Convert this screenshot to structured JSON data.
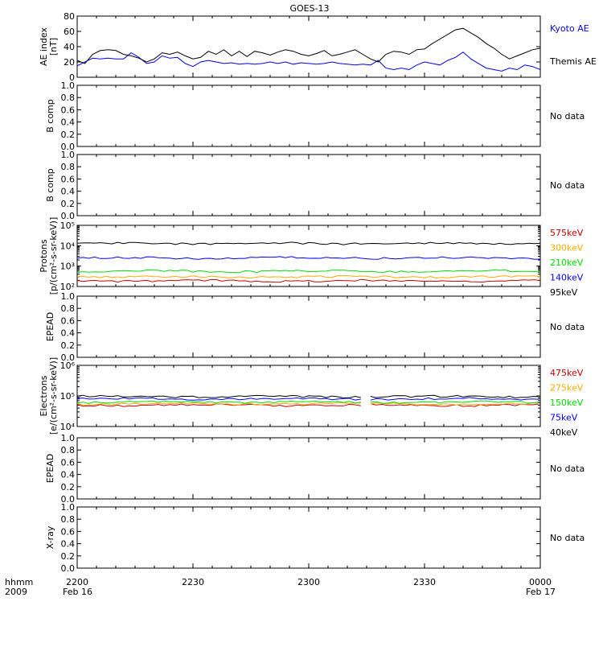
{
  "title": "GOES-13",
  "footer": {
    "time_label": "hhmm",
    "year_label": "2009"
  },
  "x_axis": {
    "tick_labels": [
      "2200",
      "2230",
      "2300",
      "2330",
      "0000"
    ],
    "date_labels": [
      "Feb 16",
      "Feb 17"
    ]
  },
  "no_data_text": "No data",
  "colors": {
    "black": "#000000",
    "blue": "#0000ff",
    "green": "#00dd00",
    "orange": "#ffaa00",
    "red": "#cc0000"
  },
  "chart_data": [
    {
      "id": "ae",
      "type": "line",
      "ylabel_lines": [
        "AE index",
        "[nT]"
      ],
      "ylim": [
        0,
        80
      ],
      "yticks": [
        "0",
        "20",
        "40",
        "60",
        "80"
      ],
      "x": [
        "22:00",
        "22:02",
        "22:04",
        "22:06",
        "22:08",
        "22:10",
        "22:12",
        "22:14",
        "22:16",
        "22:18",
        "22:20",
        "22:22",
        "22:24",
        "22:26",
        "22:28",
        "22:30",
        "22:32",
        "22:34",
        "22:36",
        "22:38",
        "22:40",
        "22:42",
        "22:44",
        "22:46",
        "22:48",
        "22:50",
        "22:52",
        "22:54",
        "22:56",
        "22:58",
        "23:00",
        "23:02",
        "23:04",
        "23:06",
        "23:08",
        "23:10",
        "23:12",
        "23:14",
        "23:16",
        "23:18",
        "23:20",
        "23:22",
        "23:24",
        "23:26",
        "23:28",
        "23:30",
        "23:32",
        "23:34",
        "23:36",
        "23:38",
        "23:40",
        "23:42",
        "23:44",
        "23:46",
        "23:48",
        "23:50",
        "23:52",
        "23:54",
        "23:56",
        "23:58",
        "00:00"
      ],
      "series": [
        {
          "name": "Kyoto AE",
          "color": "#0000ff",
          "values": [
            15,
            20,
            25,
            24,
            25,
            24,
            24,
            32,
            26,
            18,
            20,
            28,
            25,
            26,
            18,
            14,
            20,
            22,
            20,
            18,
            19,
            17,
            18,
            17,
            18,
            20,
            18,
            20,
            17,
            19,
            18,
            17,
            18,
            20,
            18,
            17,
            16,
            17,
            16,
            22,
            12,
            10,
            12,
            10,
            16,
            20,
            18,
            16,
            22,
            26,
            33,
            24,
            18,
            12,
            10,
            8,
            12,
            10,
            16,
            14,
            10
          ]
        },
        {
          "name": "Themis AE",
          "color": "#000000",
          "values": [
            22,
            18,
            30,
            35,
            36,
            35,
            30,
            28,
            25,
            20,
            24,
            32,
            30,
            33,
            28,
            24,
            26,
            34,
            30,
            36,
            28,
            34,
            27,
            34,
            32,
            29,
            33,
            36,
            34,
            30,
            28,
            31,
            35,
            28,
            30,
            33,
            36,
            30,
            24,
            20,
            30,
            34,
            33,
            30,
            36,
            37,
            44,
            50,
            56,
            62,
            64,
            58,
            52,
            44,
            38,
            30,
            24,
            28,
            32,
            36,
            38
          ]
        }
      ]
    },
    {
      "id": "b1",
      "type": "line",
      "ylabel_lines": [
        "B comp"
      ],
      "ylim": [
        0,
        1
      ],
      "yticks": [
        "0.0",
        "0.2",
        "0.4",
        "0.6",
        "0.8",
        "1.0"
      ],
      "no_data": true
    },
    {
      "id": "b2",
      "type": "line",
      "ylabel_lines": [
        "B comp"
      ],
      "ylim": [
        0,
        1
      ],
      "yticks": [
        "0.0",
        "0.2",
        "0.4",
        "0.6",
        "0.8",
        "1.0"
      ],
      "no_data": true
    },
    {
      "id": "protons",
      "type": "line",
      "log": true,
      "ylabel_lines": [
        "Protons",
        "[p/(cm²-s-sr-keV)]"
      ],
      "ylim": [
        100,
        100000
      ],
      "yticks": [
        "10²",
        "10³",
        "10⁴",
        "10⁵"
      ],
      "series": [
        {
          "name": "575keV",
          "color": "#cc0000",
          "level": 190,
          "gap": false
        },
        {
          "name": "300keV",
          "color": "#ffaa00",
          "level": 300,
          "gap": false
        },
        {
          "name": "210keV",
          "color": "#00dd00",
          "level": 560,
          "gap": false
        },
        {
          "name": "140keV",
          "color": "#0000ff",
          "level": 2500,
          "gap": false
        },
        {
          "name": "95keV",
          "color": "#000000",
          "level": 13000,
          "gap": false
        }
      ]
    },
    {
      "id": "epead1",
      "type": "line",
      "ylabel_lines": [
        "EPEAD"
      ],
      "ylim": [
        0,
        1
      ],
      "yticks": [
        "0.0",
        "0.2",
        "0.4",
        "0.6",
        "0.8",
        "1.0"
      ],
      "no_data": true
    },
    {
      "id": "electrons",
      "type": "line",
      "log": true,
      "ylabel_lines": [
        "Electrons",
        "[e/(cm²-s-sr-keV)]"
      ],
      "ylim": [
        10000,
        1000000
      ],
      "yticks": [
        "10⁴",
        "10⁵",
        "10⁶"
      ],
      "series": [
        {
          "name": "475keV",
          "color": "#cc0000",
          "level": 50000,
          "gap": true
        },
        {
          "name": "275keV",
          "color": "#ffaa00",
          "level": 55000,
          "gap": true
        },
        {
          "name": "150keV",
          "color": "#00dd00",
          "level": 62000,
          "gap": true
        },
        {
          "name": "75keV",
          "color": "#0000ff",
          "level": 80000,
          "gap": true
        },
        {
          "name": "40keV",
          "color": "#000000",
          "level": 95000,
          "gap": true
        }
      ]
    },
    {
      "id": "epead2",
      "type": "line",
      "ylabel_lines": [
        "EPEAD"
      ],
      "ylim": [
        0,
        1
      ],
      "yticks": [
        "0.0",
        "0.2",
        "0.4",
        "0.6",
        "0.8",
        "1.0"
      ],
      "no_data": true
    },
    {
      "id": "xray",
      "type": "line",
      "ylabel_lines": [
        "X-ray"
      ],
      "ylim": [
        0,
        1
      ],
      "yticks": [
        "0.0",
        "0.2",
        "0.4",
        "0.6",
        "0.8",
        "1.0"
      ],
      "no_data": true
    }
  ]
}
